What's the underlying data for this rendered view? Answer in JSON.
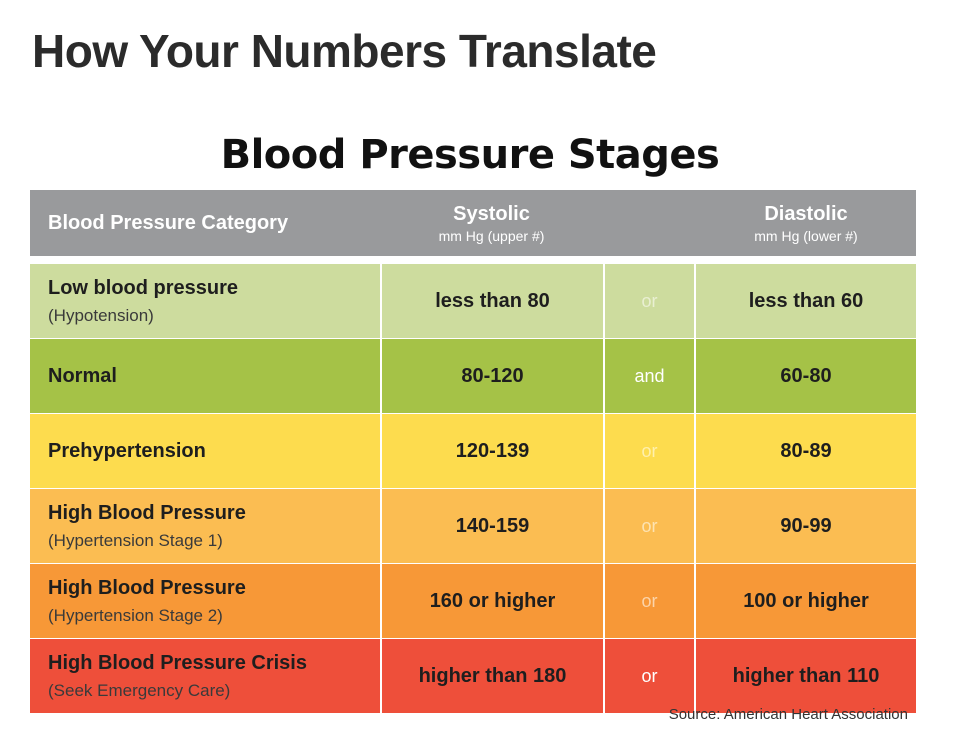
{
  "page_title": "How Your Numbers Translate",
  "table_title": "Blood Pressure Stages",
  "header": {
    "category": "Blood Pressure Category",
    "systolic": "Systolic",
    "systolic_unit": "mm Hg (upper #)",
    "diastolic": "Diastolic",
    "diastolic_unit": "mm Hg (lower #)"
  },
  "rows": [
    {
      "category": "Low blood pressure",
      "subtitle": "(Hypotension)",
      "systolic": "less than 80",
      "conjunction": "or",
      "diastolic": "less than 60",
      "color": "#cddc9e",
      "conj_color": "#e9efd2"
    },
    {
      "category": "Normal",
      "subtitle": "",
      "systolic": "80-120",
      "conjunction": "and",
      "diastolic": "60-80",
      "color": "#a5c247",
      "conj_color": "#ffffff"
    },
    {
      "category": "Prehypertension",
      "subtitle": "",
      "systolic": "120-139",
      "conjunction": "or",
      "diastolic": "80-89",
      "color": "#fddc4e",
      "conj_color": "#fff0ac"
    },
    {
      "category": "High Blood Pressure",
      "subtitle": "(Hypertension Stage 1)",
      "systolic": "140-159",
      "conjunction": "or",
      "diastolic": "90-99",
      "color": "#fbbd52",
      "conj_color": "#fde3b2"
    },
    {
      "category": "High Blood Pressure",
      "subtitle": "(Hypertension Stage 2)",
      "systolic": "160 or higher",
      "conjunction": "or",
      "diastolic": "100 or higher",
      "color": "#f79837",
      "conj_color": "#fcd4a9"
    },
    {
      "category": "High Blood Pressure Crisis",
      "subtitle": "(Seek Emergency Care)",
      "systolic": "higher than 180",
      "conjunction": "or",
      "diastolic": "higher than 110",
      "color": "#ee4f3a",
      "conj_color": "#ffffff"
    }
  ],
  "source": "Source: American Heart Association"
}
